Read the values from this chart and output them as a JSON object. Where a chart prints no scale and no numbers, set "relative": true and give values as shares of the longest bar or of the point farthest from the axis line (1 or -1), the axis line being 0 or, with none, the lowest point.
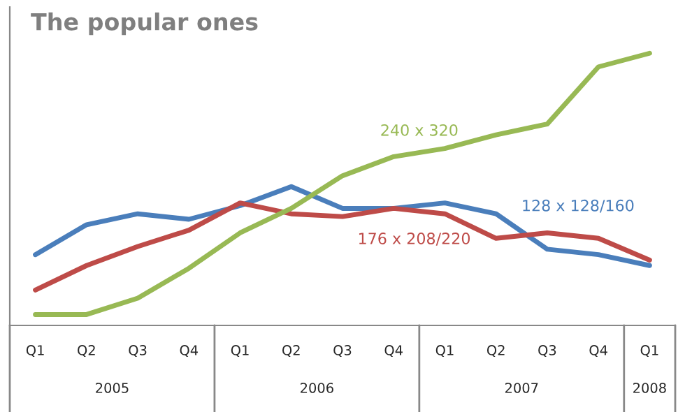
{
  "chart_data": {
    "type": "line",
    "title": "The popular ones",
    "relative": true,
    "categories": [
      "Q1",
      "Q2",
      "Q3",
      "Q4",
      "Q1",
      "Q2",
      "Q3",
      "Q4",
      "Q1",
      "Q2",
      "Q3",
      "Q4",
      "Q1"
    ],
    "annotations": [
      "2005",
      "2006",
      "2007",
      "2008"
    ],
    "series": [
      {
        "name": "128 x 128/160",
        "color": "#4a7ebb",
        "values": [
          0.26,
          0.37,
          0.41,
          0.39,
          0.44,
          0.51,
          0.43,
          0.43,
          0.45,
          0.41,
          0.28,
          0.26,
          0.22
        ]
      },
      {
        "name": "176 x 208/220",
        "color": "#be4b48",
        "values": [
          0.13,
          0.22,
          0.29,
          0.35,
          0.45,
          0.41,
          0.4,
          0.43,
          0.41,
          0.32,
          0.34,
          0.32,
          0.24
        ]
      },
      {
        "name": "240 x 320",
        "color": "#98b954",
        "values": [
          0.04,
          0.04,
          0.1,
          0.21,
          0.34,
          0.43,
          0.55,
          0.62,
          0.65,
          0.7,
          0.74,
          0.95,
          1
        ]
      }
    ],
    "grid": false,
    "legend": false,
    "marker": "none",
    "line_style": "solid"
  }
}
